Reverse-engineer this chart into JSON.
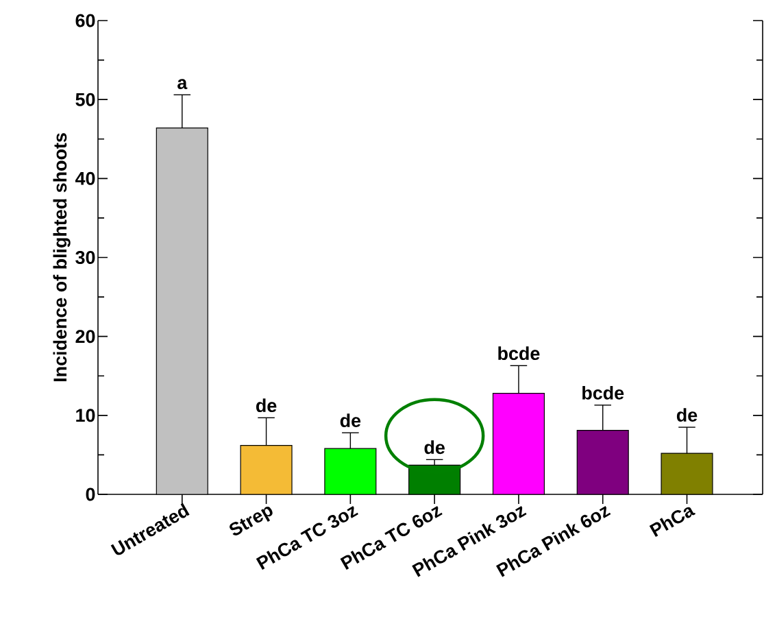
{
  "chart_data": {
    "type": "bar",
    "ylabel": "Incidence of blighted shoots",
    "categories": [
      "Untreated",
      "Strep",
      "PhCa TC 3oz",
      "PhCa TC 6oz",
      "PhCa Pink 3oz",
      "PhCa Pink 6oz",
      "PhCa"
    ],
    "values": [
      46.4,
      6.2,
      5.8,
      3.7,
      12.8,
      8.1,
      5.2
    ],
    "colors": [
      "#c0c0c0",
      "#f4bb36",
      "#00ff00",
      "#007f00",
      "#ff00ff",
      "#7f007f",
      "#808000"
    ],
    "errors": [
      [
        46.4,
        50.6
      ],
      [
        6.2,
        9.7
      ],
      [
        5.8,
        7.8
      ],
      [
        3.7,
        4.4
      ],
      [
        12.8,
        16.3
      ],
      [
        8.1,
        11.3
      ],
      [
        5.2,
        8.5
      ]
    ],
    "ylim": [
      0,
      60
    ],
    "yticks": [
      0,
      {
        "value": 5,
        "label": null
      },
      10,
      {
        "value": 15,
        "label": null
      },
      20,
      {
        "value": 25,
        "label": null
      },
      30,
      {
        "value": 35,
        "label": null
      },
      40,
      {
        "value": 45,
        "label": null
      },
      50,
      {
        "value": 55,
        "label": null
      },
      60
    ],
    "annotations": [
      {
        "text": "a",
        "x": "Untreated",
        "y": 50.6
      },
      {
        "text": "de",
        "x": "Strep",
        "y": 9.7
      },
      {
        "text": "de",
        "x": "PhCa TC 3oz",
        "y": 7.8
      },
      {
        "text": "de",
        "x": "PhCa TC 6oz",
        "y": 4.4
      },
      {
        "text": "bcde",
        "x": "PhCa Pink 3oz",
        "y": 16.3
      },
      {
        "text": "bcde",
        "x": "PhCa Pink 6oz",
        "y": 11.3
      },
      {
        "text": "de",
        "x": "PhCa",
        "y": 8.5
      }
    ]
  }
}
